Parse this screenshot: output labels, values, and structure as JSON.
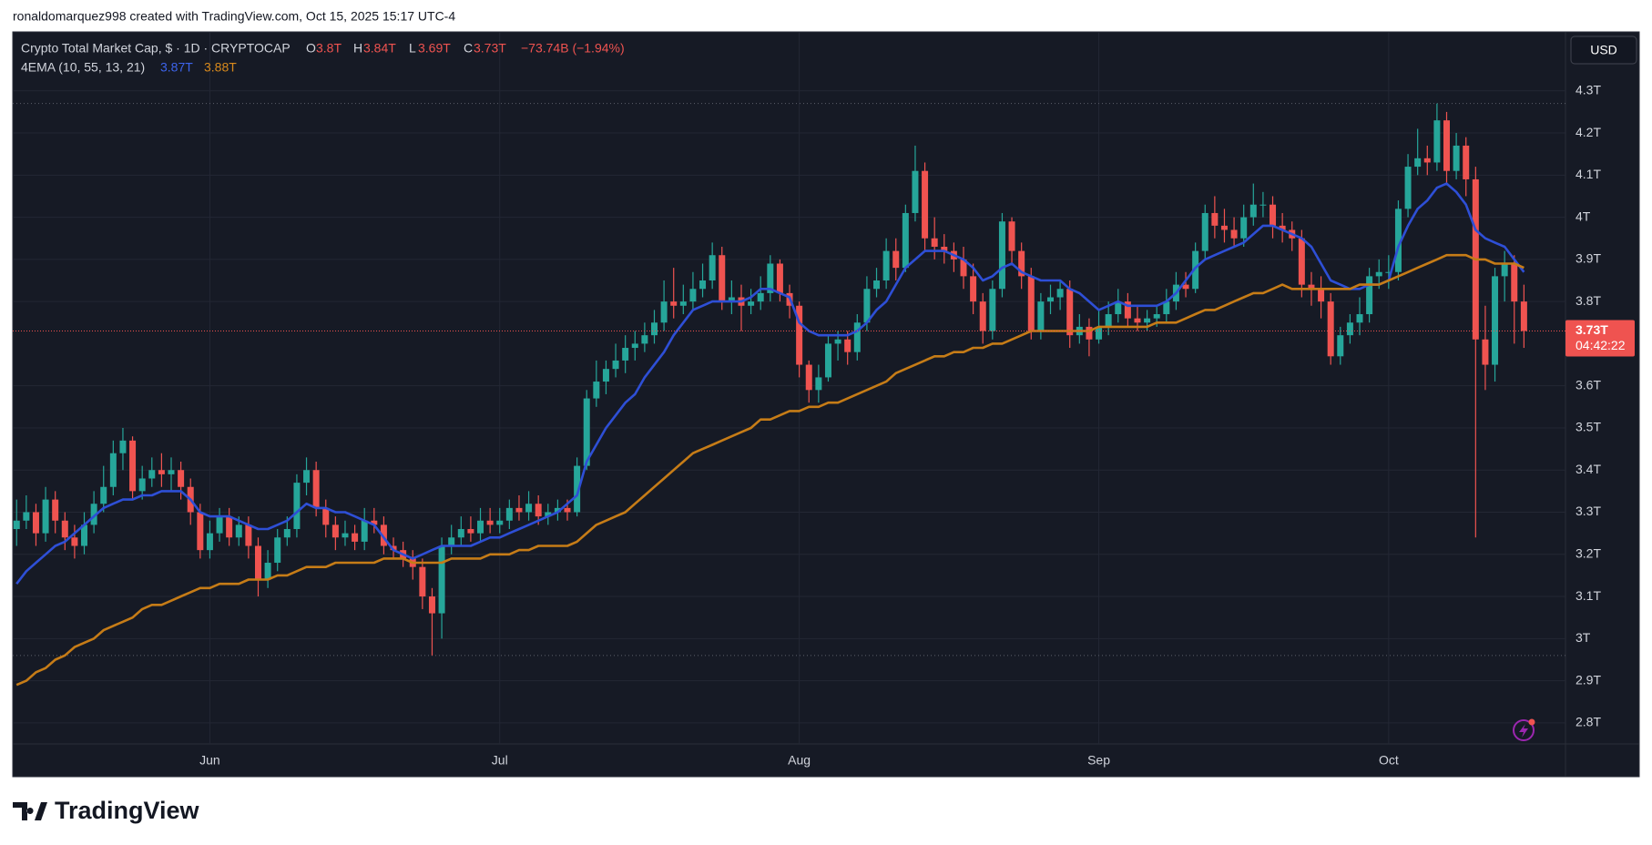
{
  "header": {
    "attribution": "ronaldomarquez998 created with TradingView.com, Oct 15, 2025 15:17 UTC-4",
    "symbol": "Crypto Total Market Cap, $ · 1D · CRYPTOCAP",
    "o_label": "O",
    "o_value": "3.8T",
    "h_label": "H",
    "h_value": "3.84T",
    "l_label": "L",
    "l_value": "3.69T",
    "c_label": "C",
    "c_value": "3.73T",
    "change": "−73.74B (−1.94%)",
    "indicator": "4EMA (10, 55, 13, 21)",
    "ema_fast": "3.87T",
    "ema_slow": "3.88T",
    "currency": "USD",
    "countdown": "04:42:22",
    "logo": "TradingView"
  },
  "chart_data": {
    "type": "candlestick",
    "up_color": "#26a69a",
    "down_color": "#ef5350",
    "grid": true,
    "ylim": [
      2.75,
      4.44
    ],
    "yticks": [
      {
        "value": 4.3,
        "label": "4.3T"
      },
      {
        "value": 4.2,
        "label": "4.2T"
      },
      {
        "value": 4.1,
        "label": "4.1T"
      },
      {
        "value": 4,
        "label": "4T"
      },
      {
        "value": 3.9,
        "label": "3.9T"
      },
      {
        "value": 3.8,
        "label": "3.8T"
      },
      {
        "value": 3.6,
        "label": "3.6T"
      },
      {
        "value": 3.5,
        "label": "3.5T"
      },
      {
        "value": 3.4,
        "label": "3.4T"
      },
      {
        "value": 3.3,
        "label": "3.3T"
      },
      {
        "value": 3.2,
        "label": "3.2T"
      },
      {
        "value": 3.1,
        "label": "3.1T"
      },
      {
        "value": 3,
        "label": "3T"
      },
      {
        "value": 2.9,
        "label": "2.9T"
      },
      {
        "value": 2.8,
        "label": "2.8T"
      }
    ],
    "xlim": [
      -0.4,
      160.3
    ],
    "xticks": [
      {
        "value": 20,
        "label": "Jun"
      },
      {
        "value": 50,
        "label": "Jul"
      },
      {
        "value": 81,
        "label": "Aug"
      },
      {
        "value": 112,
        "label": "Sep"
      },
      {
        "value": 142,
        "label": "Oct"
      }
    ],
    "open": [
      3.26,
      3.28,
      3.3,
      3.25,
      3.33,
      3.28,
      3.24,
      3.22,
      3.27,
      3.32,
      3.36,
      3.44,
      3.47,
      3.35,
      3.38,
      3.4,
      3.39,
      3.4,
      3.36,
      3.3,
      3.21,
      3.25,
      3.29,
      3.24,
      3.27,
      3.22,
      3.14,
      3.18,
      3.24,
      3.26,
      3.37,
      3.4,
      3.31,
      3.27,
      3.24,
      3.25,
      3.23,
      3.28,
      3.27,
      3.22,
      3.21,
      3.19,
      3.17,
      3.1,
      3.06,
      3.22,
      3.24,
      3.26,
      3.25,
      3.28,
      3.27,
      3.28,
      3.31,
      3.3,
      3.32,
      3.29,
      3.3,
      3.31,
      3.3,
      3.41,
      3.57,
      3.61,
      3.64,
      3.66,
      3.69,
      3.7,
      3.72,
      3.75,
      3.8,
      3.79,
      3.8,
      3.83,
      3.85,
      3.91,
      3.8,
      3.81,
      3.79,
      3.8,
      3.82,
      3.89,
      3.82,
      3.79,
      3.65,
      3.59,
      3.62,
      3.7,
      3.71,
      3.68,
      3.75,
      3.83,
      3.85,
      3.92,
      3.88,
      4.01,
      4.11,
      3.95,
      3.93,
      3.92,
      3.9,
      3.86,
      3.8,
      3.73,
      3.83,
      3.99,
      3.92,
      3.86,
      3.73,
      3.8,
      3.81,
      3.83,
      3.72,
      3.74,
      3.71,
      3.74,
      3.77,
      3.8,
      3.76,
      3.75,
      3.76,
      3.77,
      3.8,
      3.84,
      3.83,
      3.92,
      4.01,
      3.98,
      3.97,
      3.95,
      4.0,
      4.03,
      4.03,
      3.98,
      3.97,
      3.95,
      3.84,
      3.83,
      3.8,
      3.67,
      3.72,
      3.75,
      3.77,
      3.86,
      3.87,
      3.87,
      4.02,
      4.12,
      4.14,
      4.13,
      4.23,
      4.11,
      4.17,
      4.09,
      3.71,
      3.65,
      3.86,
      3.89,
      3.8
    ],
    "high": [
      3.33,
      3.34,
      3.32,
      3.36,
      3.35,
      3.3,
      3.27,
      3.3,
      3.35,
      3.41,
      3.47,
      3.5,
      3.48,
      3.41,
      3.43,
      3.44,
      3.43,
      3.42,
      3.38,
      3.32,
      3.28,
      3.31,
      3.31,
      3.29,
      3.29,
      3.24,
      3.21,
      3.26,
      3.29,
      3.39,
      3.43,
      3.42,
      3.33,
      3.29,
      3.28,
      3.27,
      3.31,
      3.31,
      3.29,
      3.24,
      3.23,
      3.21,
      3.19,
      3.12,
      3.24,
      3.27,
      3.29,
      3.29,
      3.31,
      3.31,
      3.31,
      3.33,
      3.34,
      3.35,
      3.34,
      3.32,
      3.33,
      3.33,
      3.43,
      3.59,
      3.66,
      3.66,
      3.7,
      3.72,
      3.73,
      3.75,
      3.78,
      3.85,
      3.88,
      3.84,
      3.87,
      3.89,
      3.94,
      3.93,
      3.85,
      3.84,
      3.83,
      3.86,
      3.91,
      3.9,
      3.84,
      3.8,
      3.66,
      3.65,
      3.72,
      3.73,
      3.73,
      3.77,
      3.86,
      3.88,
      3.95,
      3.95,
      4.03,
      4.17,
      4.13,
      4.0,
      3.96,
      3.94,
      3.93,
      3.89,
      3.82,
      3.85,
      4.01,
      4.0,
      3.94,
      3.88,
      3.82,
      3.84,
      3.85,
      3.85,
      3.77,
      3.76,
      3.78,
      3.8,
      3.83,
      3.82,
      3.79,
      3.78,
      3.79,
      3.83,
      3.87,
      3.87,
      3.94,
      4.03,
      4.05,
      4.02,
      4.0,
      4.03,
      4.08,
      4.06,
      4.05,
      4.01,
      3.99,
      3.97,
      3.87,
      3.86,
      3.82,
      3.74,
      3.77,
      3.81,
      3.88,
      3.9,
      3.91,
      4.04,
      4.15,
      4.21,
      4.17,
      4.27,
      4.25,
      4.2,
      4.19,
      4.12,
      3.79,
      3.88,
      3.92,
      3.91,
      3.84
    ],
    "low": [
      3.22,
      3.26,
      3.22,
      3.23,
      3.25,
      3.21,
      3.19,
      3.2,
      3.25,
      3.3,
      3.34,
      3.4,
      3.33,
      3.33,
      3.36,
      3.36,
      3.35,
      3.33,
      3.27,
      3.19,
      3.19,
      3.23,
      3.22,
      3.22,
      3.19,
      3.1,
      3.12,
      3.16,
      3.22,
      3.24,
      3.34,
      3.29,
      3.24,
      3.21,
      3.22,
      3.21,
      3.21,
      3.25,
      3.2,
      3.19,
      3.17,
      3.14,
      3.07,
      2.96,
      3.0,
      3.2,
      3.22,
      3.23,
      3.23,
      3.25,
      3.25,
      3.26,
      3.28,
      3.28,
      3.27,
      3.27,
      3.28,
      3.28,
      3.29,
      3.4,
      3.55,
      3.58,
      3.62,
      3.63,
      3.66,
      3.68,
      3.7,
      3.73,
      3.76,
      3.77,
      3.78,
      3.81,
      3.83,
      3.78,
      3.77,
      3.73,
      3.77,
      3.78,
      3.8,
      3.8,
      3.76,
      3.62,
      3.56,
      3.56,
      3.61,
      3.66,
      3.65,
      3.66,
      3.73,
      3.81,
      3.83,
      3.85,
      3.87,
      3.99,
      3.92,
      3.9,
      3.89,
      3.87,
      3.83,
      3.77,
      3.7,
      3.71,
      3.81,
      3.89,
      3.83,
      3.71,
      3.71,
      3.77,
      3.78,
      3.69,
      3.7,
      3.67,
      3.7,
      3.72,
      3.75,
      3.74,
      3.73,
      3.73,
      3.74,
      3.75,
      3.78,
      3.81,
      3.82,
      3.9,
      3.95,
      3.94,
      3.93,
      3.93,
      3.98,
      4.0,
      3.95,
      3.94,
      3.92,
      3.81,
      3.79,
      3.76,
      3.65,
      3.65,
      3.7,
      3.72,
      3.75,
      3.83,
      3.83,
      3.85,
      4.0,
      4.1,
      4.1,
      4.11,
      4.08,
      4.09,
      4.05,
      3.24,
      3.59,
      3.61,
      3.8,
      3.7,
      3.69
    ],
    "close": [
      3.28,
      3.3,
      3.25,
      3.33,
      3.28,
      3.24,
      3.22,
      3.27,
      3.32,
      3.36,
      3.44,
      3.47,
      3.35,
      3.38,
      3.4,
      3.39,
      3.4,
      3.36,
      3.3,
      3.21,
      3.25,
      3.29,
      3.24,
      3.27,
      3.22,
      3.14,
      3.18,
      3.24,
      3.26,
      3.37,
      3.4,
      3.31,
      3.27,
      3.24,
      3.25,
      3.23,
      3.28,
      3.27,
      3.22,
      3.21,
      3.19,
      3.17,
      3.1,
      3.06,
      3.22,
      3.24,
      3.26,
      3.25,
      3.28,
      3.27,
      3.28,
      3.31,
      3.3,
      3.32,
      3.29,
      3.3,
      3.31,
      3.3,
      3.41,
      3.57,
      3.61,
      3.64,
      3.66,
      3.69,
      3.7,
      3.72,
      3.75,
      3.8,
      3.79,
      3.8,
      3.83,
      3.85,
      3.91,
      3.8,
      3.81,
      3.79,
      3.8,
      3.82,
      3.89,
      3.82,
      3.79,
      3.65,
      3.59,
      3.62,
      3.7,
      3.71,
      3.68,
      3.75,
      3.83,
      3.85,
      3.92,
      3.88,
      4.01,
      4.11,
      3.95,
      3.93,
      3.92,
      3.9,
      3.86,
      3.8,
      3.73,
      3.83,
      3.99,
      3.92,
      3.86,
      3.73,
      3.8,
      3.81,
      3.83,
      3.72,
      3.74,
      3.71,
      3.74,
      3.77,
      3.8,
      3.76,
      3.75,
      3.76,
      3.77,
      3.8,
      3.84,
      3.83,
      3.92,
      4.01,
      3.98,
      3.97,
      3.95,
      4.0,
      4.03,
      4.03,
      3.98,
      3.97,
      3.95,
      3.84,
      3.83,
      3.8,
      3.67,
      3.72,
      3.75,
      3.77,
      3.86,
      3.87,
      3.87,
      4.02,
      4.12,
      4.14,
      4.13,
      4.23,
      4.11,
      4.17,
      4.09,
      3.71,
      3.65,
      3.86,
      3.89,
      3.8,
      3.73
    ],
    "series": [
      {
        "color": "#2e4fd6",
        "values": [
          3.13,
          3.16,
          3.18,
          3.2,
          3.22,
          3.23,
          3.25,
          3.27,
          3.29,
          3.31,
          3.32,
          3.33,
          3.33,
          3.34,
          3.34,
          3.35,
          3.35,
          3.35,
          3.33,
          3.3,
          3.29,
          3.29,
          3.29,
          3.28,
          3.27,
          3.26,
          3.26,
          3.27,
          3.28,
          3.3,
          3.32,
          3.31,
          3.31,
          3.3,
          3.3,
          3.29,
          3.28,
          3.27,
          3.24,
          3.21,
          3.2,
          3.19,
          3.2,
          3.21,
          3.22,
          3.22,
          3.22,
          3.22,
          3.23,
          3.24,
          3.24,
          3.25,
          3.26,
          3.27,
          3.28,
          3.29,
          3.3,
          3.32,
          3.34,
          3.42,
          3.46,
          3.5,
          3.53,
          3.56,
          3.58,
          3.62,
          3.65,
          3.68,
          3.72,
          3.75,
          3.78,
          3.79,
          3.8,
          3.8,
          3.8,
          3.8,
          3.81,
          3.83,
          3.83,
          3.82,
          3.81,
          3.75,
          3.73,
          3.72,
          3.72,
          3.72,
          3.72,
          3.73,
          3.75,
          3.78,
          3.8,
          3.84,
          3.88,
          3.9,
          3.92,
          3.92,
          3.92,
          3.91,
          3.9,
          3.88,
          3.85,
          3.86,
          3.88,
          3.89,
          3.87,
          3.86,
          3.85,
          3.85,
          3.85,
          3.83,
          3.82,
          3.8,
          3.78,
          3.79,
          3.8,
          3.79,
          3.79,
          3.79,
          3.79,
          3.8,
          3.82,
          3.85,
          3.88,
          3.9,
          3.91,
          3.92,
          3.93,
          3.94,
          3.96,
          3.98,
          3.98,
          3.97,
          3.96,
          3.95,
          3.93,
          3.89,
          3.85,
          3.84,
          3.83,
          3.83,
          3.84,
          3.84,
          3.85,
          3.93,
          3.98,
          4.02,
          4.04,
          4.07,
          4.08,
          4.06,
          4.03,
          3.97,
          3.95,
          3.94,
          3.93,
          3.9,
          3.87
        ]
      },
      {
        "color": "#c67c17",
        "values": [
          2.89,
          2.9,
          2.92,
          2.93,
          2.95,
          2.96,
          2.98,
          2.99,
          3.0,
          3.02,
          3.03,
          3.04,
          3.05,
          3.07,
          3.08,
          3.08,
          3.09,
          3.1,
          3.11,
          3.12,
          3.12,
          3.13,
          3.13,
          3.13,
          3.14,
          3.14,
          3.14,
          3.15,
          3.15,
          3.16,
          3.17,
          3.17,
          3.17,
          3.18,
          3.18,
          3.18,
          3.18,
          3.18,
          3.19,
          3.19,
          3.19,
          3.18,
          3.18,
          3.18,
          3.18,
          3.19,
          3.19,
          3.19,
          3.19,
          3.2,
          3.2,
          3.2,
          3.21,
          3.21,
          3.22,
          3.22,
          3.22,
          3.22,
          3.23,
          3.25,
          3.27,
          3.28,
          3.29,
          3.3,
          3.32,
          3.34,
          3.36,
          3.38,
          3.4,
          3.42,
          3.44,
          3.45,
          3.46,
          3.47,
          3.48,
          3.49,
          3.5,
          3.52,
          3.52,
          3.53,
          3.54,
          3.54,
          3.55,
          3.55,
          3.56,
          3.56,
          3.57,
          3.58,
          3.59,
          3.6,
          3.61,
          3.63,
          3.64,
          3.65,
          3.66,
          3.67,
          3.67,
          3.68,
          3.68,
          3.69,
          3.69,
          3.7,
          3.7,
          3.71,
          3.72,
          3.73,
          3.73,
          3.73,
          3.73,
          3.73,
          3.73,
          3.73,
          3.74,
          3.74,
          3.74,
          3.74,
          3.74,
          3.74,
          3.75,
          3.75,
          3.75,
          3.76,
          3.77,
          3.78,
          3.78,
          3.79,
          3.8,
          3.81,
          3.82,
          3.82,
          3.83,
          3.84,
          3.83,
          3.83,
          3.83,
          3.83,
          3.83,
          3.83,
          3.83,
          3.84,
          3.84,
          3.84,
          3.85,
          3.86,
          3.87,
          3.88,
          3.89,
          3.9,
          3.91,
          3.91,
          3.91,
          3.9,
          3.9,
          3.89,
          3.89,
          3.89,
          3.88
        ]
      }
    ]
  }
}
